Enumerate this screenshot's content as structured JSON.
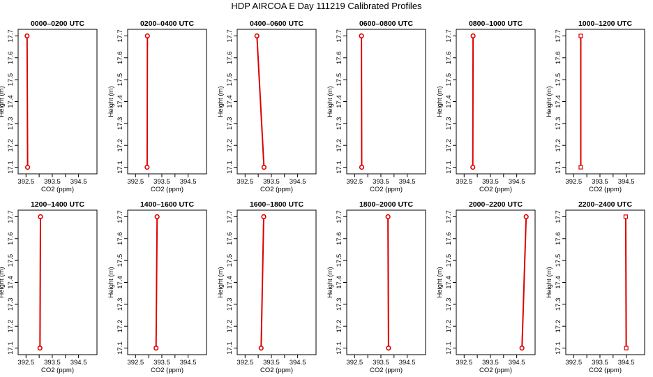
{
  "title": "HDP AIRCOA E  Day 111219  Calibrated Profiles",
  "colors": {
    "series": "#dd0000",
    "axis": "#000000",
    "background": "#ffffff"
  },
  "chart_data": {
    "type": "line",
    "xlabel": "CO2 (ppm)",
    "ylabel": "Height (m)",
    "xlim": [
      392.2,
      395.2
    ],
    "ylim": [
      17.07,
      17.73
    ],
    "xticks": [
      392.5,
      393.5,
      394.5
    ],
    "xtick_labels": [
      "392.5",
      "393.5",
      "394.5"
    ],
    "yticks": [
      17.1,
      17.2,
      17.3,
      17.4,
      17.5,
      17.6,
      17.7
    ],
    "ytick_labels": [
      "17.1",
      "17.2",
      "17.3",
      "17.4",
      "17.5",
      "17.6",
      "17.7"
    ],
    "grid": false,
    "legend": "none",
    "panels": [
      {
        "title": "0000–0200 UTC",
        "points": [
          {
            "co2": 392.54,
            "height": 17.7
          },
          {
            "co2": 392.56,
            "height": 17.1
          }
        ]
      },
      {
        "title": "0200–0400 UTC",
        "points": [
          {
            "co2": 392.95,
            "height": 17.7
          },
          {
            "co2": 392.94,
            "height": 17.1
          }
        ]
      },
      {
        "title": "0400–0600 UTC",
        "points": [
          {
            "co2": 392.95,
            "height": 17.7
          },
          {
            "co2": 393.22,
            "height": 17.1
          }
        ]
      },
      {
        "title": "0600–0800 UTC",
        "points": [
          {
            "co2": 392.76,
            "height": 17.7
          },
          {
            "co2": 392.77,
            "height": 17.1
          }
        ]
      },
      {
        "title": "0800–1000 UTC",
        "points": [
          {
            "co2": 392.84,
            "height": 17.7
          },
          {
            "co2": 392.83,
            "height": 17.1
          }
        ]
      },
      {
        "title": "1000–1200 UTC",
        "points": [
          {
            "co2": 392.77,
            "height": 17.7
          },
          {
            "co2": 392.77,
            "height": 17.1
          }
        ]
      },
      {
        "title": "1200–1400 UTC",
        "points": [
          {
            "co2": 393.05,
            "height": 17.7
          },
          {
            "co2": 393.03,
            "height": 17.1
          }
        ]
      },
      {
        "title": "1400–1600 UTC",
        "points": [
          {
            "co2": 393.32,
            "height": 17.7
          },
          {
            "co2": 393.28,
            "height": 17.1
          }
        ]
      },
      {
        "title": "1600–1800 UTC",
        "points": [
          {
            "co2": 393.21,
            "height": 17.7
          },
          {
            "co2": 393.11,
            "height": 17.1
          }
        ]
      },
      {
        "title": "1800–2000 UTC",
        "points": [
          {
            "co2": 393.77,
            "height": 17.7
          },
          {
            "co2": 393.79,
            "height": 17.1
          }
        ]
      },
      {
        "title": "2000–2200 UTC",
        "points": [
          {
            "co2": 394.86,
            "height": 17.7
          },
          {
            "co2": 394.7,
            "height": 17.1
          }
        ]
      },
      {
        "title": "2200–2400 UTC",
        "points": [
          {
            "co2": 394.48,
            "height": 17.7
          },
          {
            "co2": 394.5,
            "height": 17.1
          }
        ]
      }
    ]
  }
}
